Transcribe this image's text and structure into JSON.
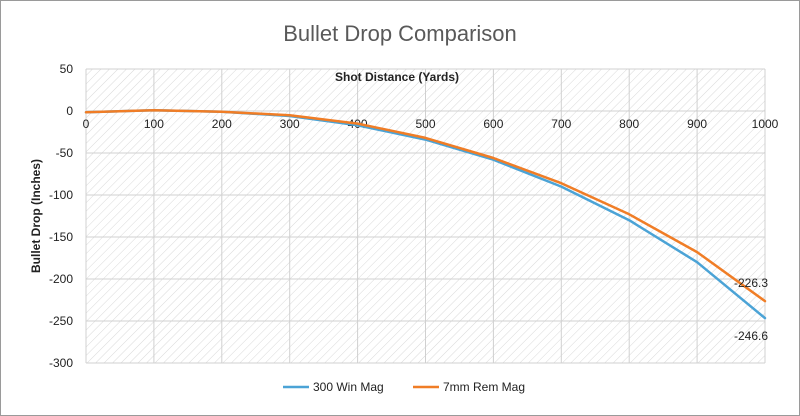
{
  "chart_data": {
    "type": "line",
    "title": "Bullet Drop Comparison",
    "xlabel": "Shot Distance (Yards)",
    "ylabel": "Bullet Drop (Inches)",
    "x": [
      0,
      100,
      200,
      300,
      400,
      500,
      600,
      700,
      800,
      900,
      1000
    ],
    "xlim": [
      0,
      1000
    ],
    "ylim": [
      -300,
      50
    ],
    "x_ticks": [
      "0",
      "100",
      "200",
      "300",
      "400",
      "500",
      "600",
      "700",
      "800",
      "900",
      "1000"
    ],
    "y_ticks": [
      "50",
      "0",
      "-50",
      "-100",
      "-150",
      "-200",
      "-250",
      "-300"
    ],
    "grid": true,
    "legend_position": "bottom",
    "series": [
      {
        "name": "300 Win Mag",
        "color": "#4ba3d6",
        "values": [
          -1.5,
          1.0,
          -1.0,
          -6.0,
          -17.0,
          -34.0,
          -58.0,
          -90.0,
          -130.0,
          -180.0,
          -246.6
        ],
        "end_label": "-246.6"
      },
      {
        "name": "7mm Rem Mag",
        "color": "#f07d26",
        "values": [
          -1.5,
          1.0,
          -1.0,
          -5.0,
          -15.0,
          -32.0,
          -56.0,
          -86.0,
          -123.0,
          -168.0,
          -226.3
        ],
        "end_label": "-226.3"
      }
    ]
  }
}
